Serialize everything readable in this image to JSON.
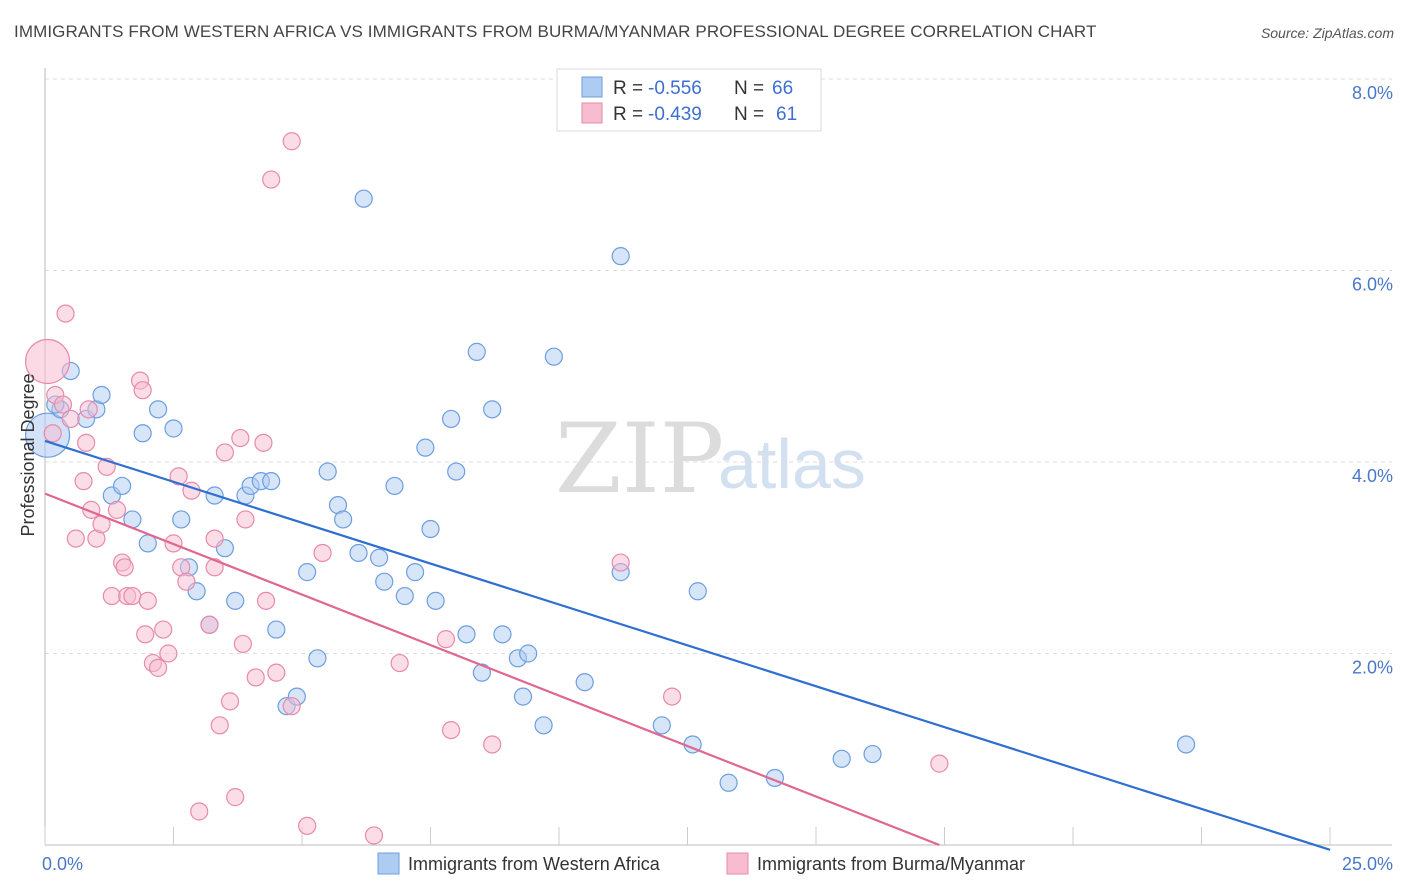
{
  "header": {
    "title": "IMMIGRANTS FROM WESTERN AFRICA VS IMMIGRANTS FROM BURMA/MYANMAR PROFESSIONAL DEGREE CORRELATION CHART",
    "source": "Source: ZipAtlas.com"
  },
  "watermark": {
    "zip": "ZIP",
    "atlas": "atlas"
  },
  "colors": {
    "blue_fill": "#aecbf2",
    "blue_stroke": "#6d9ee0",
    "blue_line": "#2f6fd1",
    "pink_fill": "#f7bcd0",
    "pink_stroke": "#e88aab",
    "pink_line": "#e0678f",
    "grid": "#dddddd",
    "axis_text": "#4a78c8"
  },
  "legend": {
    "r_label": "R =",
    "n_label": "N =",
    "series": [
      {
        "r": "-0.556",
        "n": "66"
      },
      {
        "r": "-0.439",
        "n": "61"
      }
    ]
  },
  "chart_data": {
    "type": "scatter",
    "title": "IMMIGRANTS FROM WESTERN AFRICA VS IMMIGRANTS FROM BURMA/MYANMAR PROFESSIONAL DEGREE CORRELATION CHART",
    "xlabel": "",
    "ylabel": "Professional Degree",
    "xlim": [
      0,
      25
    ],
    "ylim": [
      0,
      8.0
    ],
    "x_tick_labels": [
      "0.0%",
      "25.0%"
    ],
    "y_ticks": [
      2,
      4,
      6,
      8
    ],
    "y_tick_labels": [
      "2.0%",
      "4.0%",
      "6.0%",
      "8.0%"
    ],
    "series": [
      {
        "name": "Immigrants from Western Africa",
        "color": "blue",
        "trend": {
          "x": [
            0,
            25
          ],
          "y": [
            4.22,
            -0.05
          ]
        },
        "points": [
          {
            "x": 0.05,
            "y": 4.28,
            "big": true
          },
          {
            "x": 0.3,
            "y": 4.55
          },
          {
            "x": 0.5,
            "y": 4.95
          },
          {
            "x": 0.8,
            "y": 4.45
          },
          {
            "x": 1.0,
            "y": 4.55
          },
          {
            "x": 1.1,
            "y": 4.7
          },
          {
            "x": 1.3,
            "y": 3.65
          },
          {
            "x": 1.5,
            "y": 3.75
          },
          {
            "x": 1.7,
            "y": 3.4
          },
          {
            "x": 1.9,
            "y": 4.3
          },
          {
            "x": 2.0,
            "y": 3.15
          },
          {
            "x": 2.2,
            "y": 4.55
          },
          {
            "x": 2.5,
            "y": 4.35
          },
          {
            "x": 2.65,
            "y": 3.4
          },
          {
            "x": 2.8,
            "y": 2.9
          },
          {
            "x": 2.95,
            "y": 2.65
          },
          {
            "x": 3.2,
            "y": 2.3
          },
          {
            "x": 3.3,
            "y": 3.65
          },
          {
            "x": 3.5,
            "y": 3.1
          },
          {
            "x": 3.7,
            "y": 2.55
          },
          {
            "x": 3.9,
            "y": 3.65
          },
          {
            "x": 4.0,
            "y": 3.75
          },
          {
            "x": 4.2,
            "y": 3.8
          },
          {
            "x": 4.4,
            "y": 3.8
          },
          {
            "x": 4.5,
            "y": 2.25
          },
          {
            "x": 4.7,
            "y": 1.45
          },
          {
            "x": 4.9,
            "y": 1.55
          },
          {
            "x": 5.1,
            "y": 2.85
          },
          {
            "x": 5.3,
            "y": 1.95
          },
          {
            "x": 5.5,
            "y": 3.9
          },
          {
            "x": 5.7,
            "y": 3.55
          },
          {
            "x": 5.8,
            "y": 3.4
          },
          {
            "x": 6.1,
            "y": 3.05
          },
          {
            "x": 6.2,
            "y": 6.75
          },
          {
            "x": 6.5,
            "y": 3.0
          },
          {
            "x": 6.6,
            "y": 2.75
          },
          {
            "x": 6.8,
            "y": 3.75
          },
          {
            "x": 7.0,
            "y": 2.6
          },
          {
            "x": 7.2,
            "y": 2.85
          },
          {
            "x": 7.4,
            "y": 4.15
          },
          {
            "x": 7.5,
            "y": 3.3
          },
          {
            "x": 7.6,
            "y": 2.55
          },
          {
            "x": 7.9,
            "y": 4.45
          },
          {
            "x": 8.0,
            "y": 3.9
          },
          {
            "x": 8.2,
            "y": 2.2
          },
          {
            "x": 8.4,
            "y": 5.15
          },
          {
            "x": 8.5,
            "y": 1.8
          },
          {
            "x": 8.7,
            "y": 4.55
          },
          {
            "x": 8.9,
            "y": 2.2
          },
          {
            "x": 9.2,
            "y": 1.95
          },
          {
            "x": 9.4,
            "y": 2.0
          },
          {
            "x": 9.3,
            "y": 1.55
          },
          {
            "x": 9.7,
            "y": 1.25
          },
          {
            "x": 9.9,
            "y": 5.1
          },
          {
            "x": 10.5,
            "y": 1.7
          },
          {
            "x": 11.2,
            "y": 6.15
          },
          {
            "x": 11.2,
            "y": 2.85
          },
          {
            "x": 12.0,
            "y": 1.25
          },
          {
            "x": 12.6,
            "y": 1.05
          },
          {
            "x": 12.7,
            "y": 2.65
          },
          {
            "x": 13.3,
            "y": 0.65
          },
          {
            "x": 14.2,
            "y": 0.7
          },
          {
            "x": 15.5,
            "y": 0.9
          },
          {
            "x": 16.1,
            "y": 0.95
          },
          {
            "x": 22.2,
            "y": 1.05
          },
          {
            "x": 0.2,
            "y": 4.6
          }
        ]
      },
      {
        "name": "Immigrants from Burma/Myanmar",
        "color": "pink",
        "trend": {
          "x": [
            0,
            17.4
          ],
          "y": [
            3.67,
            0.0
          ]
        },
        "points": [
          {
            "x": 0.05,
            "y": 5.05,
            "big": true
          },
          {
            "x": 0.2,
            "y": 4.7
          },
          {
            "x": 0.35,
            "y": 4.6
          },
          {
            "x": 0.5,
            "y": 4.45
          },
          {
            "x": 0.4,
            "y": 5.55
          },
          {
            "x": 0.6,
            "y": 3.2
          },
          {
            "x": 0.75,
            "y": 3.8
          },
          {
            "x": 0.8,
            "y": 4.2
          },
          {
            "x": 0.85,
            "y": 4.55
          },
          {
            "x": 0.9,
            "y": 3.5
          },
          {
            "x": 1.0,
            "y": 3.2
          },
          {
            "x": 1.1,
            "y": 3.35
          },
          {
            "x": 1.2,
            "y": 3.95
          },
          {
            "x": 1.3,
            "y": 2.6
          },
          {
            "x": 1.4,
            "y": 3.5
          },
          {
            "x": 1.5,
            "y": 2.95
          },
          {
            "x": 1.55,
            "y": 2.9
          },
          {
            "x": 1.6,
            "y": 2.6
          },
          {
            "x": 1.7,
            "y": 2.6
          },
          {
            "x": 1.85,
            "y": 4.85
          },
          {
            "x": 1.9,
            "y": 4.75
          },
          {
            "x": 1.95,
            "y": 2.2
          },
          {
            "x": 2.0,
            "y": 2.55
          },
          {
            "x": 2.1,
            "y": 1.9
          },
          {
            "x": 2.2,
            "y": 1.85
          },
          {
            "x": 2.3,
            "y": 2.25
          },
          {
            "x": 2.4,
            "y": 2.0
          },
          {
            "x": 2.5,
            "y": 3.15
          },
          {
            "x": 2.6,
            "y": 3.85
          },
          {
            "x": 2.65,
            "y": 2.9
          },
          {
            "x": 2.75,
            "y": 2.75
          },
          {
            "x": 2.85,
            "y": 3.7
          },
          {
            "x": 3.0,
            "y": 0.35
          },
          {
            "x": 3.2,
            "y": 2.3
          },
          {
            "x": 3.3,
            "y": 2.9
          },
          {
            "x": 3.3,
            "y": 3.2
          },
          {
            "x": 3.4,
            "y": 1.25
          },
          {
            "x": 3.5,
            "y": 4.1
          },
          {
            "x": 3.6,
            "y": 1.5
          },
          {
            "x": 3.7,
            "y": 0.5
          },
          {
            "x": 3.8,
            "y": 4.25
          },
          {
            "x": 3.85,
            "y": 2.1
          },
          {
            "x": 3.9,
            "y": 3.4
          },
          {
            "x": 4.1,
            "y": 1.75
          },
          {
            "x": 4.25,
            "y": 4.2
          },
          {
            "x": 4.3,
            "y": 2.55
          },
          {
            "x": 4.5,
            "y": 1.8
          },
          {
            "x": 4.4,
            "y": 6.95
          },
          {
            "x": 4.8,
            "y": 1.45
          },
          {
            "x": 4.8,
            "y": 7.35
          },
          {
            "x": 5.1,
            "y": 0.2
          },
          {
            "x": 5.4,
            "y": 3.05
          },
          {
            "x": 6.4,
            "y": 0.1
          },
          {
            "x": 6.9,
            "y": 1.9
          },
          {
            "x": 7.8,
            "y": 2.15
          },
          {
            "x": 7.9,
            "y": 1.2
          },
          {
            "x": 8.7,
            "y": 1.05
          },
          {
            "x": 11.2,
            "y": 2.95
          },
          {
            "x": 12.2,
            "y": 1.55
          },
          {
            "x": 17.4,
            "y": 0.85
          },
          {
            "x": 0.15,
            "y": 4.3
          }
        ]
      }
    ]
  },
  "bottom_legend": [
    {
      "label": "Immigrants from Western Africa"
    },
    {
      "label": "Immigrants from Burma/Myanmar"
    }
  ]
}
